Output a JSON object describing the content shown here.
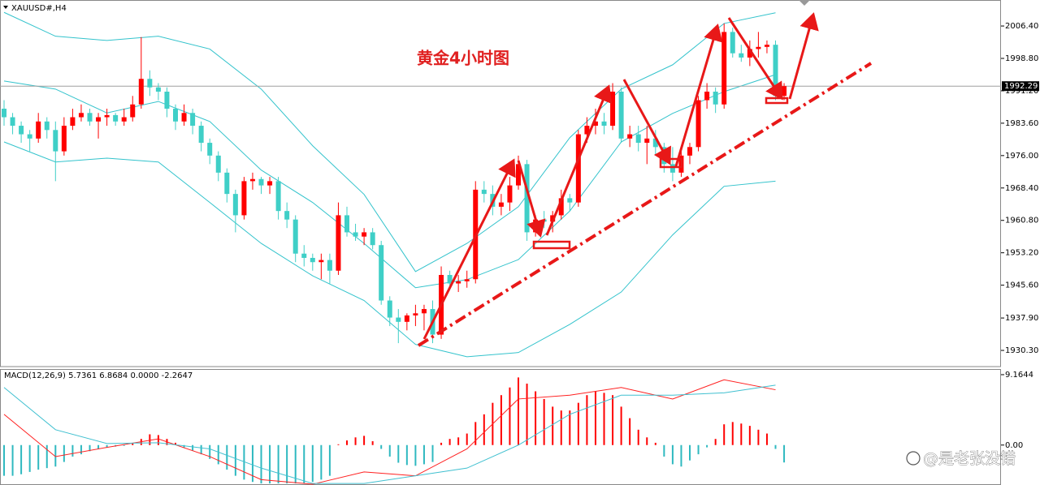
{
  "chart_data": [
    {
      "type": "candlestick",
      "symbol": "XAUUSD#,H4",
      "title": "黄金4小时图",
      "up_color": "#ff0000",
      "down_color": "#3fcfc7",
      "band_color": "#33c3cc",
      "open": [
        1987,
        1985,
        1983,
        1981,
        1980,
        1984,
        1982,
        1977,
        1983,
        1985,
        1986,
        1984,
        1985,
        1985.5,
        1984,
        1985,
        1988,
        1994,
        1992,
        1991,
        1987,
        1984,
        1986,
        1983,
        1979,
        1976,
        1972,
        1967,
        1962,
        1970,
        1970.5,
        1969,
        1970,
        1963,
        1961,
        1953,
        1952,
        1951,
        1951.5,
        1949,
        1962,
        1958,
        1957,
        1958,
        1955,
        1942,
        1938,
        1937,
        1938.5,
        1939,
        1940,
        1934,
        1948,
        1946,
        1946.5,
        1947,
        1968,
        1967,
        1964,
        1965,
        1969,
        1974,
        1958,
        1961,
        1960.5,
        1962,
        1966,
        1965,
        1981,
        1983,
        1984,
        1983,
        1991,
        1980,
        1981,
        1979,
        1980,
        1978,
        1974,
        1972,
        1976,
        1978,
        1989,
        1991,
        1988,
        2005,
        2000,
        1999,
        2001,
        2001.5,
        2002,
        1990
      ],
      "high": [
        1989,
        1986,
        1984,
        1982,
        1986,
        1985,
        1984,
        1985,
        1987,
        1988,
        1987,
        1986,
        1987,
        1986,
        1987,
        1990,
        2003.8,
        1996,
        1993,
        1992,
        1988,
        1988,
        1987,
        1984,
        1980,
        1977,
        1973,
        1968,
        1971,
        1972,
        1971,
        1971,
        1971,
        1965,
        1962,
        1955,
        1953,
        1953,
        1953,
        1965,
        1964,
        1960,
        1959,
        1959,
        1956,
        1943,
        1940,
        1939,
        1941,
        1941,
        1942,
        1950,
        1949,
        1948,
        1949,
        1970,
        1970,
        1969,
        1967,
        1971,
        1976,
        1975,
        1962,
        1963,
        1963,
        1968,
        1967,
        1982,
        1985,
        1987,
        1986,
        1993,
        1992,
        1983,
        1983,
        1983,
        1982,
        1979,
        1978,
        1977,
        1979,
        1990,
        1993,
        1992,
        2007,
        2006,
        2002,
        2003,
        2005,
        2003,
        2003,
        1993
      ],
      "low": [
        1983,
        1981,
        1979,
        1977,
        1979,
        1980,
        1970,
        1976,
        1982,
        1984,
        1983,
        1980,
        1983,
        1983,
        1983,
        1984,
        1987,
        1990,
        1989,
        1985,
        1982,
        1983,
        1981,
        1977,
        1974,
        1970,
        1965,
        1958,
        1961,
        1968,
        1967,
        1967,
        1961,
        1959,
        1951,
        1950,
        1949,
        1947,
        1946,
        1948,
        1957,
        1956,
        1955,
        1954,
        1941,
        1936,
        1932,
        1935,
        1936,
        1935,
        1932,
        1933,
        1945,
        1944,
        1945,
        1946,
        1965,
        1962,
        1962,
        1963,
        1968,
        1956,
        1957,
        1959,
        1958,
        1961,
        1963,
        1964,
        1979,
        1981,
        1981,
        1982,
        1979,
        1978,
        1977,
        1974,
        1976,
        1972,
        1970,
        1971,
        1974,
        1977,
        1987,
        1986,
        1987,
        1999,
        1998,
        1997,
        1999,
        2000,
        1989,
        1989
      ],
      "close": [
        1985,
        1983,
        1981,
        1980,
        1984,
        1982,
        1977,
        1983,
        1985,
        1986,
        1984,
        1985,
        1985.5,
        1984,
        1985,
        1988,
        1994,
        1992,
        1991,
        1987,
        1984,
        1986,
        1983,
        1979,
        1976,
        1972,
        1967,
        1962,
        1970,
        1970.5,
        1969,
        1970,
        1963,
        1961,
        1953,
        1952,
        1951,
        1951.5,
        1949,
        1962,
        1958,
        1957,
        1958,
        1955,
        1942,
        1938,
        1937,
        1938.5,
        1939,
        1940,
        1934,
        1948,
        1946,
        1946.5,
        1947,
        1968,
        1967,
        1964,
        1965,
        1969,
        1974,
        1958,
        1961,
        1960.5,
        1962,
        1966,
        1965,
        1981,
        1983,
        1984,
        1983,
        1991,
        1980,
        1981,
        1979,
        1980,
        1978,
        1974,
        1972,
        1976,
        1978,
        1989,
        1991,
        1988,
        2005,
        2000,
        1999,
        2001,
        2001.5,
        2002,
        1990,
        1992.29
      ],
      "bands_x": [
        0,
        6,
        12,
        18,
        24,
        30,
        36,
        42,
        48,
        54,
        60,
        66,
        72,
        78,
        84,
        90
      ],
      "bands": [
        {
          "values": [
            2009.6,
            2004,
            2003,
            2004,
            2001,
            1991.6,
            1978.3,
            1966.9,
            1948.8,
            1955.4,
            1964,
            1980.2,
            1991.6,
            1997.3,
            2007,
            2009.5
          ]
        },
        {
          "values": [
            1993.5,
            1991.6,
            1986,
            1988.7,
            1984,
            1972.6,
            1965,
            1955.4,
            1945,
            1946.9,
            1951.6,
            1963,
            1979.2,
            1985.9,
            1991,
            1995
          ]
        },
        {
          "values": [
            1979.2,
            1974.5,
            1975.4,
            1974.5,
            1965,
            1955.4,
            1947.8,
            1942,
            1931.7,
            1928.8,
            1929.8,
            1936.4,
            1944,
            1957.4,
            1968.8,
            1970
          ]
        }
      ],
      "current_price": 1992.29,
      "ylim": [
        1926.5,
        2012.5
      ],
      "yticks": [
        {
          "value": 2006.4,
          "label": "2006.40"
        },
        {
          "value": 1998.8,
          "label": "1998.80"
        },
        {
          "value": 1991.2,
          "label": "1991.20"
        },
        {
          "value": 1983.6,
          "label": "1983.60"
        },
        {
          "value": 1976,
          "label": "1976.00"
        },
        {
          "value": 1968.4,
          "label": "1968.40"
        },
        {
          "value": 1960.8,
          "label": "1960.80"
        },
        {
          "value": 1953.2,
          "label": "1953.20"
        },
        {
          "value": 1945.6,
          "label": "1945.60"
        },
        {
          "value": 1937.9,
          "label": "1937.90"
        },
        {
          "value": 1930.3,
          "label": "1930.30"
        }
      ]
    },
    {
      "type": "macd",
      "label": "MACD(12,26,9) 5.7361 6.8684 0.0000 -2.2647",
      "up_color": "#ff0000",
      "down_color": "#2fb9c0",
      "histogram": [
        -4,
        -4,
        -3.8,
        -3.5,
        -3.2,
        -3,
        -2.8,
        -2.2,
        -1.5,
        -1.2,
        -0.8,
        -0.5,
        -0.3,
        -0.2,
        -0.1,
        0.3,
        0.8,
        1.4,
        1.3,
        0.8,
        0.3,
        -0.3,
        -0.7,
        -1.2,
        -1.8,
        -2.5,
        -3.2,
        -4,
        -4.5,
        -4.8,
        -5,
        -5,
        -5,
        -5,
        -5,
        -5,
        -4.8,
        -4.5,
        -4,
        0.1,
        0.6,
        1,
        1.2,
        0.5,
        -0.5,
        -1.5,
        -2.3,
        -2.6,
        -2.7,
        -2.5,
        -2.2,
        0.3,
        0.8,
        1,
        1.5,
        3,
        4,
        5.5,
        6.5,
        7.5,
        8.8,
        8,
        7,
        6,
        5,
        4.5,
        4.5,
        5.5,
        6.5,
        7,
        6.8,
        6.5,
        5,
        3.5,
        2,
        1,
        0.3,
        -1.5,
        -2.5,
        -2.8,
        -2,
        -1.2,
        -0.3,
        0.8,
        2.7,
        3,
        2.8,
        2.5,
        2,
        1.5,
        -0.5,
        -2.2647
      ],
      "lines_x": [
        0,
        6,
        12,
        18,
        24,
        30,
        36,
        42,
        48,
        54,
        60,
        66,
        72,
        78,
        84,
        90
      ],
      "lines": [
        {
          "color": "#ff2020",
          "values": [
            4,
            -1.5,
            -0.3,
            0.8,
            -1.5,
            -4.5,
            -5.1,
            -3.5,
            -4,
            -0.5,
            6,
            6.5,
            7.5,
            6,
            8.5,
            7.2
          ]
        },
        {
          "color": "#40c0d0",
          "values": [
            7.5,
            2,
            0.2,
            0.3,
            -0.5,
            -3,
            -5,
            -5,
            -4,
            -3,
            0,
            4,
            6.5,
            6.5,
            6.8,
            7.8
          ]
        }
      ],
      "ylim": [
        -5.2,
        9.9
      ],
      "yticks": [
        9.1644,
        {
          "value": 0,
          "label": "0.00"
        }
      ]
    }
  ],
  "watermark": "@是老张没错"
}
